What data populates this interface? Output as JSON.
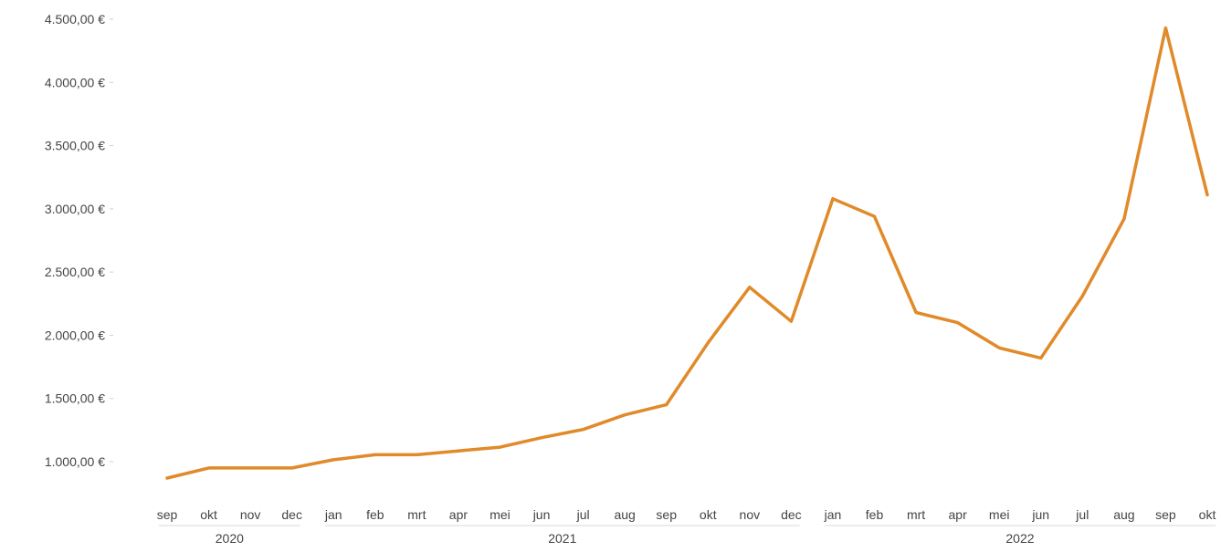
{
  "chart_data": {
    "type": "line",
    "title": "",
    "xlabel": "",
    "ylabel": "",
    "legend": "none",
    "grid": false,
    "ylim": [
      750,
      4550
    ],
    "y_ticks": [
      {
        "value": 1000,
        "label": "1.000,00 €"
      },
      {
        "value": 1500,
        "label": "1.500,00 €"
      },
      {
        "value": 2000,
        "label": "2.000,00 €"
      },
      {
        "value": 2500,
        "label": "2.500,00 €"
      },
      {
        "value": 3000,
        "label": "3.000,00 €"
      },
      {
        "value": 3500,
        "label": "3.500,00 €"
      },
      {
        "value": 4000,
        "label": "4.000,00 €"
      },
      {
        "value": 4500,
        "label": "4.500,00 €"
      }
    ],
    "categories": [
      "sep",
      "okt",
      "nov",
      "dec",
      "jan",
      "feb",
      "mrt",
      "apr",
      "mei",
      "jun",
      "jul",
      "aug",
      "sep",
      "okt",
      "nov",
      "dec",
      "jan",
      "feb",
      "mrt",
      "apr",
      "mei",
      "jun",
      "jul",
      "aug",
      "sep",
      "okt"
    ],
    "year_groups": [
      {
        "label": "2020",
        "start": 0,
        "end": 3
      },
      {
        "label": "2021",
        "start": 4,
        "end": 15
      },
      {
        "label": "2022",
        "start": 16,
        "end": 25
      }
    ],
    "series": [
      {
        "color": "#E08A2A",
        "values": [
          870,
          950,
          950,
          950,
          1015,
          1055,
          1055,
          1085,
          1115,
          1190,
          1255,
          1370,
          1450,
          1940,
          2380,
          2110,
          3080,
          2940,
          2180,
          2100,
          1900,
          1820,
          2310,
          2920,
          4430,
          3110
        ]
      }
    ]
  }
}
